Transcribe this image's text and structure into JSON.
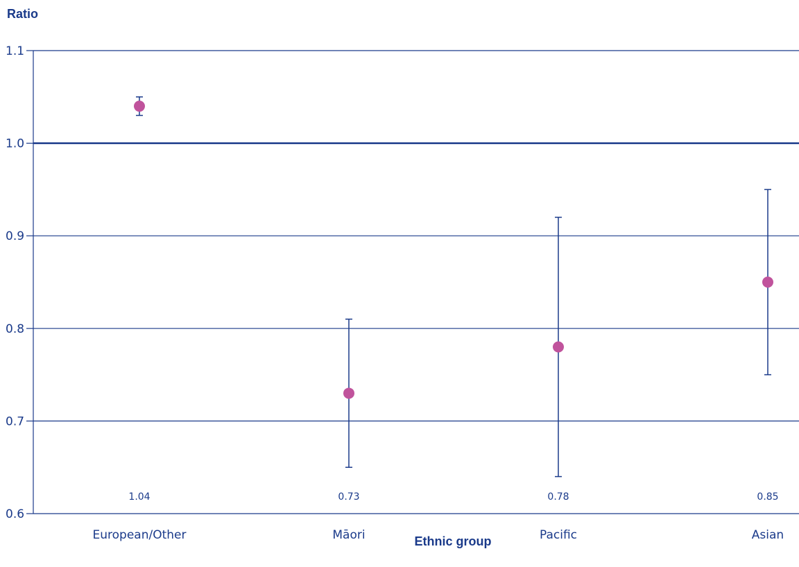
{
  "chart_data": {
    "type": "scatter",
    "ylabel": "Ratio",
    "xlabel": "Ethnic group",
    "categories": [
      "European/Other",
      "Māori",
      "Pacific",
      "Asian"
    ],
    "values": [
      1.04,
      0.73,
      0.78,
      0.85
    ],
    "ci_low": [
      1.03,
      0.65,
      0.64,
      0.75
    ],
    "ci_high": [
      1.05,
      0.81,
      0.92,
      0.95
    ],
    "data_labels": [
      "1.04",
      "0.73",
      "0.78",
      "0.85"
    ],
    "ylim": [
      0.6,
      1.1
    ],
    "yticks": [
      0.6,
      0.7,
      0.8,
      0.9,
      1.0,
      1.1
    ],
    "ytick_labels": [
      "0.6",
      "0.7",
      "0.8",
      "0.9",
      "1.0",
      "1.1"
    ],
    "reference_line": 1.0,
    "grid": true,
    "colors": {
      "marker": "#c0539c",
      "axis": "#1a3a8a",
      "text": "#1a3a8a"
    }
  }
}
